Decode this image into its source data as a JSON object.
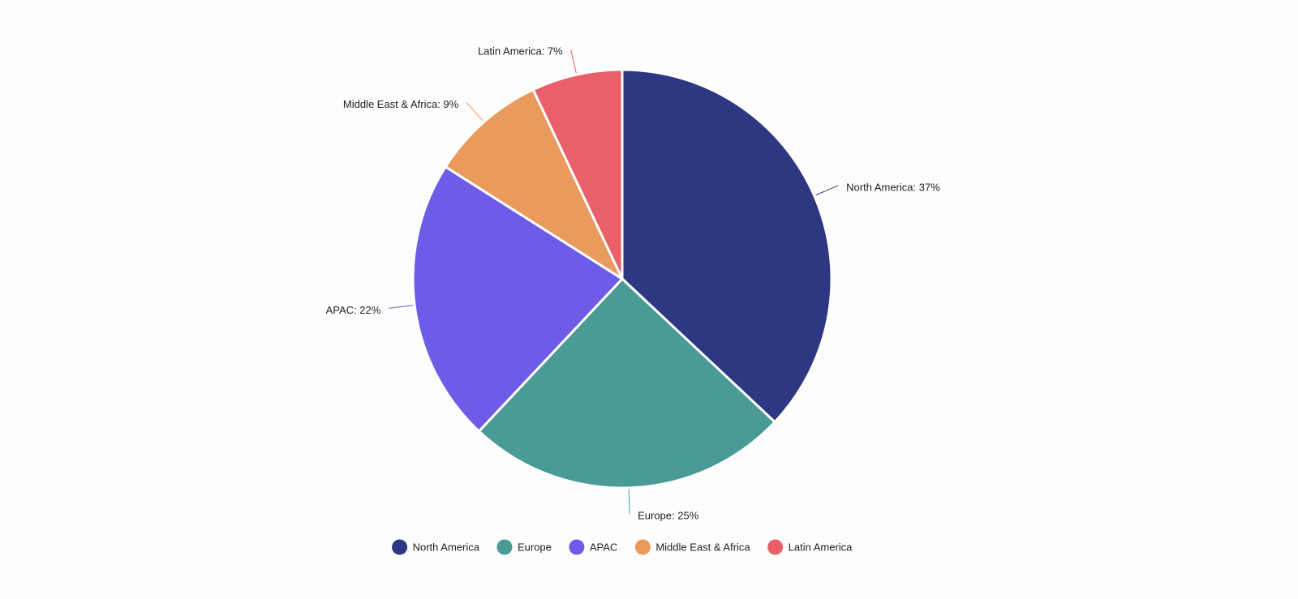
{
  "chart_data": {
    "type": "pie",
    "categories": [
      "North America",
      "Europe",
      "APAC",
      "Middle East & Africa",
      "Latin America"
    ],
    "values": [
      37,
      25,
      22,
      9,
      7
    ],
    "value_labels": [
      "North America: 37%",
      "Europe: 25%",
      "APAC: 22%",
      "Middle East & Africa: 9%",
      "Latin America: 7%"
    ],
    "colors": [
      "#2e3782",
      "#4a9a97",
      "#6c5ce7",
      "#e99a5c",
      "#e95f6a"
    ],
    "legend": "bottom"
  }
}
